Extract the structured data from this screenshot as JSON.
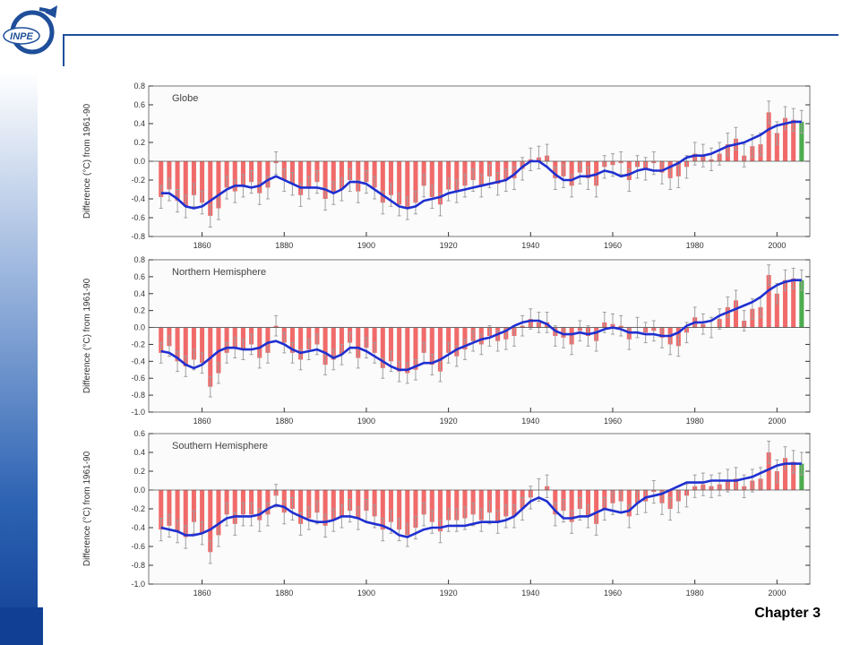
{
  "logo": {
    "text": "INPE"
  },
  "footer": {
    "chapter": "Chapter 3"
  },
  "colors": {
    "bar": "#f05a5a",
    "curve": "#1f2fd0",
    "errorbar": "#a0a0a0",
    "last_bar": "#3aa33a",
    "frame": "#777777"
  },
  "chart_data": [
    {
      "type": "bar",
      "title": "Globe",
      "ylabel": "Difference (°C) from 1961-90",
      "xlim": [
        1847,
        2008
      ],
      "ylim": [
        -0.8,
        0.8
      ],
      "yticks": [
        -0.8,
        -0.6,
        -0.4,
        -0.2,
        0.0,
        0.2,
        0.4,
        0.6,
        0.8
      ],
      "xticks": [
        1860,
        1880,
        1900,
        1920,
        1940,
        1960,
        1980,
        2000
      ],
      "x": [
        1850,
        1852,
        1854,
        1856,
        1858,
        1860,
        1862,
        1864,
        1866,
        1868,
        1870,
        1872,
        1874,
        1876,
        1878,
        1880,
        1882,
        1884,
        1886,
        1888,
        1890,
        1892,
        1894,
        1896,
        1898,
        1900,
        1902,
        1904,
        1906,
        1908,
        1910,
        1912,
        1914,
        1916,
        1918,
        1920,
        1922,
        1924,
        1926,
        1928,
        1930,
        1932,
        1934,
        1936,
        1938,
        1940,
        1942,
        1944,
        1946,
        1948,
        1950,
        1952,
        1954,
        1956,
        1958,
        1960,
        1962,
        1964,
        1966,
        1968,
        1970,
        1972,
        1974,
        1976,
        1978,
        1980,
        1982,
        1984,
        1986,
        1988,
        1990,
        1992,
        1994,
        1996,
        1998,
        2000,
        2002,
        2004,
        2006
      ],
      "values": [
        -0.38,
        -0.3,
        -0.42,
        -0.48,
        -0.36,
        -0.44,
        -0.58,
        -0.5,
        -0.28,
        -0.32,
        -0.26,
        -0.22,
        -0.34,
        -0.28,
        -0.02,
        -0.2,
        -0.24,
        -0.36,
        -0.28,
        -0.22,
        -0.4,
        -0.34,
        -0.3,
        -0.2,
        -0.32,
        -0.22,
        -0.28,
        -0.44,
        -0.36,
        -0.46,
        -0.5,
        -0.44,
        -0.26,
        -0.38,
        -0.46,
        -0.3,
        -0.32,
        -0.26,
        -0.2,
        -0.26,
        -0.16,
        -0.24,
        -0.2,
        -0.18,
        -0.08,
        0.02,
        0.04,
        0.06,
        -0.18,
        -0.16,
        -0.26,
        -0.12,
        -0.18,
        -0.26,
        -0.06,
        -0.04,
        -0.02,
        -0.2,
        -0.06,
        -0.08,
        -0.02,
        -0.12,
        -0.18,
        -0.16,
        -0.06,
        0.08,
        0.06,
        0.02,
        0.08,
        0.18,
        0.24,
        0.06,
        0.16,
        0.18,
        0.52,
        0.3,
        0.46,
        0.44,
        0.42
      ],
      "smooth": [
        -0.34,
        -0.34,
        -0.4,
        -0.48,
        -0.5,
        -0.48,
        -0.42,
        -0.36,
        -0.3,
        -0.26,
        -0.26,
        -0.28,
        -0.26,
        -0.2,
        -0.16,
        -0.2,
        -0.24,
        -0.28,
        -0.28,
        -0.28,
        -0.3,
        -0.34,
        -0.3,
        -0.22,
        -0.22,
        -0.24,
        -0.3,
        -0.36,
        -0.42,
        -0.48,
        -0.5,
        -0.48,
        -0.42,
        -0.4,
        -0.38,
        -0.34,
        -0.32,
        -0.3,
        -0.28,
        -0.26,
        -0.24,
        -0.22,
        -0.2,
        -0.14,
        -0.06,
        0.0,
        0.0,
        -0.06,
        -0.14,
        -0.2,
        -0.2,
        -0.16,
        -0.16,
        -0.14,
        -0.1,
        -0.12,
        -0.16,
        -0.14,
        -0.1,
        -0.08,
        -0.1,
        -0.1,
        -0.06,
        -0.02,
        0.04,
        0.06,
        0.06,
        0.08,
        0.12,
        0.16,
        0.18,
        0.2,
        0.24,
        0.28,
        0.34,
        0.38,
        0.4,
        0.42,
        0.42
      ]
    },
    {
      "type": "bar",
      "title": "Northern Hemisphere",
      "ylabel": "Difference (°C) from 1961-90",
      "xlim": [
        1847,
        2008
      ],
      "ylim": [
        -1.0,
        0.8
      ],
      "yticks": [
        -1.0,
        -0.8,
        -0.6,
        -0.4,
        -0.2,
        0.0,
        0.2,
        0.4,
        0.6,
        0.8
      ],
      "xticks": [
        1860,
        1880,
        1900,
        1920,
        1940,
        1960,
        1980,
        2000
      ],
      "x": [
        1850,
        1852,
        1854,
        1856,
        1858,
        1860,
        1862,
        1864,
        1866,
        1868,
        1870,
        1872,
        1874,
        1876,
        1878,
        1880,
        1882,
        1884,
        1886,
        1888,
        1890,
        1892,
        1894,
        1896,
        1898,
        1900,
        1902,
        1904,
        1906,
        1908,
        1910,
        1912,
        1914,
        1916,
        1918,
        1920,
        1922,
        1924,
        1926,
        1928,
        1930,
        1932,
        1934,
        1936,
        1938,
        1940,
        1942,
        1944,
        1946,
        1948,
        1950,
        1952,
        1954,
        1956,
        1958,
        1960,
        1962,
        1964,
        1966,
        1968,
        1970,
        1972,
        1974,
        1976,
        1978,
        1980,
        1982,
        1984,
        1986,
        1988,
        1990,
        1992,
        1994,
        1996,
        1998,
        2000,
        2002,
        2004,
        2006
      ],
      "values": [
        -0.3,
        -0.22,
        -0.4,
        -0.46,
        -0.38,
        -0.42,
        -0.7,
        -0.54,
        -0.3,
        -0.24,
        -0.26,
        -0.2,
        -0.36,
        -0.3,
        0.02,
        -0.18,
        -0.3,
        -0.38,
        -0.26,
        -0.2,
        -0.44,
        -0.38,
        -0.32,
        -0.18,
        -0.36,
        -0.24,
        -0.3,
        -0.48,
        -0.4,
        -0.52,
        -0.54,
        -0.5,
        -0.3,
        -0.44,
        -0.52,
        -0.3,
        -0.34,
        -0.26,
        -0.16,
        -0.2,
        -0.1,
        -0.16,
        -0.14,
        -0.1,
        0.02,
        0.1,
        0.06,
        0.06,
        -0.1,
        -0.12,
        -0.2,
        -0.04,
        -0.1,
        -0.16,
        0.06,
        0.04,
        0.02,
        -0.14,
        0.0,
        -0.06,
        -0.04,
        -0.12,
        -0.2,
        -0.22,
        -0.06,
        0.12,
        0.04,
        0.0,
        0.1,
        0.24,
        0.32,
        0.08,
        0.22,
        0.24,
        0.62,
        0.4,
        0.56,
        0.58,
        0.56
      ],
      "smooth": [
        -0.28,
        -0.3,
        -0.36,
        -0.44,
        -0.48,
        -0.44,
        -0.36,
        -0.28,
        -0.24,
        -0.24,
        -0.26,
        -0.26,
        -0.24,
        -0.18,
        -0.16,
        -0.2,
        -0.26,
        -0.3,
        -0.28,
        -0.26,
        -0.3,
        -0.36,
        -0.32,
        -0.24,
        -0.24,
        -0.28,
        -0.34,
        -0.4,
        -0.46,
        -0.5,
        -0.5,
        -0.46,
        -0.42,
        -0.42,
        -0.38,
        -0.32,
        -0.26,
        -0.22,
        -0.18,
        -0.14,
        -0.12,
        -0.08,
        -0.04,
        0.02,
        0.06,
        0.08,
        0.08,
        0.04,
        -0.04,
        -0.08,
        -0.08,
        -0.06,
        -0.08,
        -0.06,
        -0.02,
        0.0,
        -0.02,
        -0.06,
        -0.06,
        -0.08,
        -0.08,
        -0.1,
        -0.1,
        -0.06,
        0.02,
        0.06,
        0.06,
        0.08,
        0.14,
        0.18,
        0.22,
        0.26,
        0.3,
        0.36,
        0.44,
        0.5,
        0.54,
        0.56,
        0.56
      ]
    },
    {
      "type": "bar",
      "title": "Southern Hemisphere",
      "ylabel": "Difference (°C) from 1961-90",
      "xlim": [
        1847,
        2008
      ],
      "ylim": [
        -1.0,
        0.6
      ],
      "yticks": [
        -1.0,
        -0.8,
        -0.6,
        -0.4,
        -0.2,
        0.0,
        0.2,
        0.4,
        0.6
      ],
      "xticks": [
        1860,
        1880,
        1900,
        1920,
        1940,
        1960,
        1980,
        2000
      ],
      "x": [
        1850,
        1852,
        1854,
        1856,
        1858,
        1860,
        1862,
        1864,
        1866,
        1868,
        1870,
        1872,
        1874,
        1876,
        1878,
        1880,
        1882,
        1884,
        1886,
        1888,
        1890,
        1892,
        1894,
        1896,
        1898,
        1900,
        1902,
        1904,
        1906,
        1908,
        1910,
        1912,
        1914,
        1916,
        1918,
        1920,
        1922,
        1924,
        1926,
        1928,
        1930,
        1932,
        1934,
        1936,
        1938,
        1940,
        1942,
        1944,
        1946,
        1948,
        1950,
        1952,
        1954,
        1956,
        1958,
        1960,
        1962,
        1964,
        1966,
        1968,
        1970,
        1972,
        1974,
        1976,
        1978,
        1980,
        1982,
        1984,
        1986,
        1988,
        1990,
        1992,
        1994,
        1996,
        1998,
        2000,
        2002,
        2004,
        2006
      ],
      "values": [
        -0.42,
        -0.38,
        -0.44,
        -0.5,
        -0.34,
        -0.46,
        -0.66,
        -0.48,
        -0.26,
        -0.36,
        -0.26,
        -0.26,
        -0.32,
        -0.26,
        -0.06,
        -0.24,
        -0.2,
        -0.36,
        -0.3,
        -0.24,
        -0.38,
        -0.32,
        -0.28,
        -0.22,
        -0.3,
        -0.22,
        -0.28,
        -0.42,
        -0.34,
        -0.42,
        -0.48,
        -0.4,
        -0.26,
        -0.34,
        -0.44,
        -0.32,
        -0.32,
        -0.3,
        -0.26,
        -0.32,
        -0.24,
        -0.34,
        -0.28,
        -0.28,
        -0.2,
        -0.08,
        0.0,
        0.04,
        -0.26,
        -0.22,
        -0.34,
        -0.2,
        -0.28,
        -0.36,
        -0.2,
        -0.14,
        -0.12,
        -0.28,
        -0.14,
        -0.12,
        -0.02,
        -0.14,
        -0.2,
        -0.12,
        -0.06,
        0.04,
        0.06,
        0.04,
        0.06,
        0.1,
        0.12,
        0.04,
        0.1,
        0.12,
        0.4,
        0.2,
        0.34,
        0.3,
        0.28
      ],
      "smooth": [
        -0.4,
        -0.42,
        -0.44,
        -0.48,
        -0.48,
        -0.46,
        -0.42,
        -0.36,
        -0.3,
        -0.28,
        -0.28,
        -0.28,
        -0.26,
        -0.2,
        -0.16,
        -0.18,
        -0.24,
        -0.28,
        -0.32,
        -0.34,
        -0.34,
        -0.32,
        -0.28,
        -0.28,
        -0.3,
        -0.34,
        -0.36,
        -0.38,
        -0.42,
        -0.48,
        -0.5,
        -0.46,
        -0.42,
        -0.4,
        -0.4,
        -0.38,
        -0.38,
        -0.38,
        -0.36,
        -0.34,
        -0.34,
        -0.34,
        -0.32,
        -0.28,
        -0.2,
        -0.12,
        -0.08,
        -0.12,
        -0.22,
        -0.3,
        -0.3,
        -0.28,
        -0.28,
        -0.24,
        -0.2,
        -0.22,
        -0.24,
        -0.22,
        -0.14,
        -0.08,
        -0.06,
        -0.04,
        0.0,
        0.04,
        0.08,
        0.08,
        0.08,
        0.1,
        0.1,
        0.1,
        0.1,
        0.12,
        0.14,
        0.18,
        0.22,
        0.26,
        0.28,
        0.28,
        0.28
      ]
    }
  ]
}
